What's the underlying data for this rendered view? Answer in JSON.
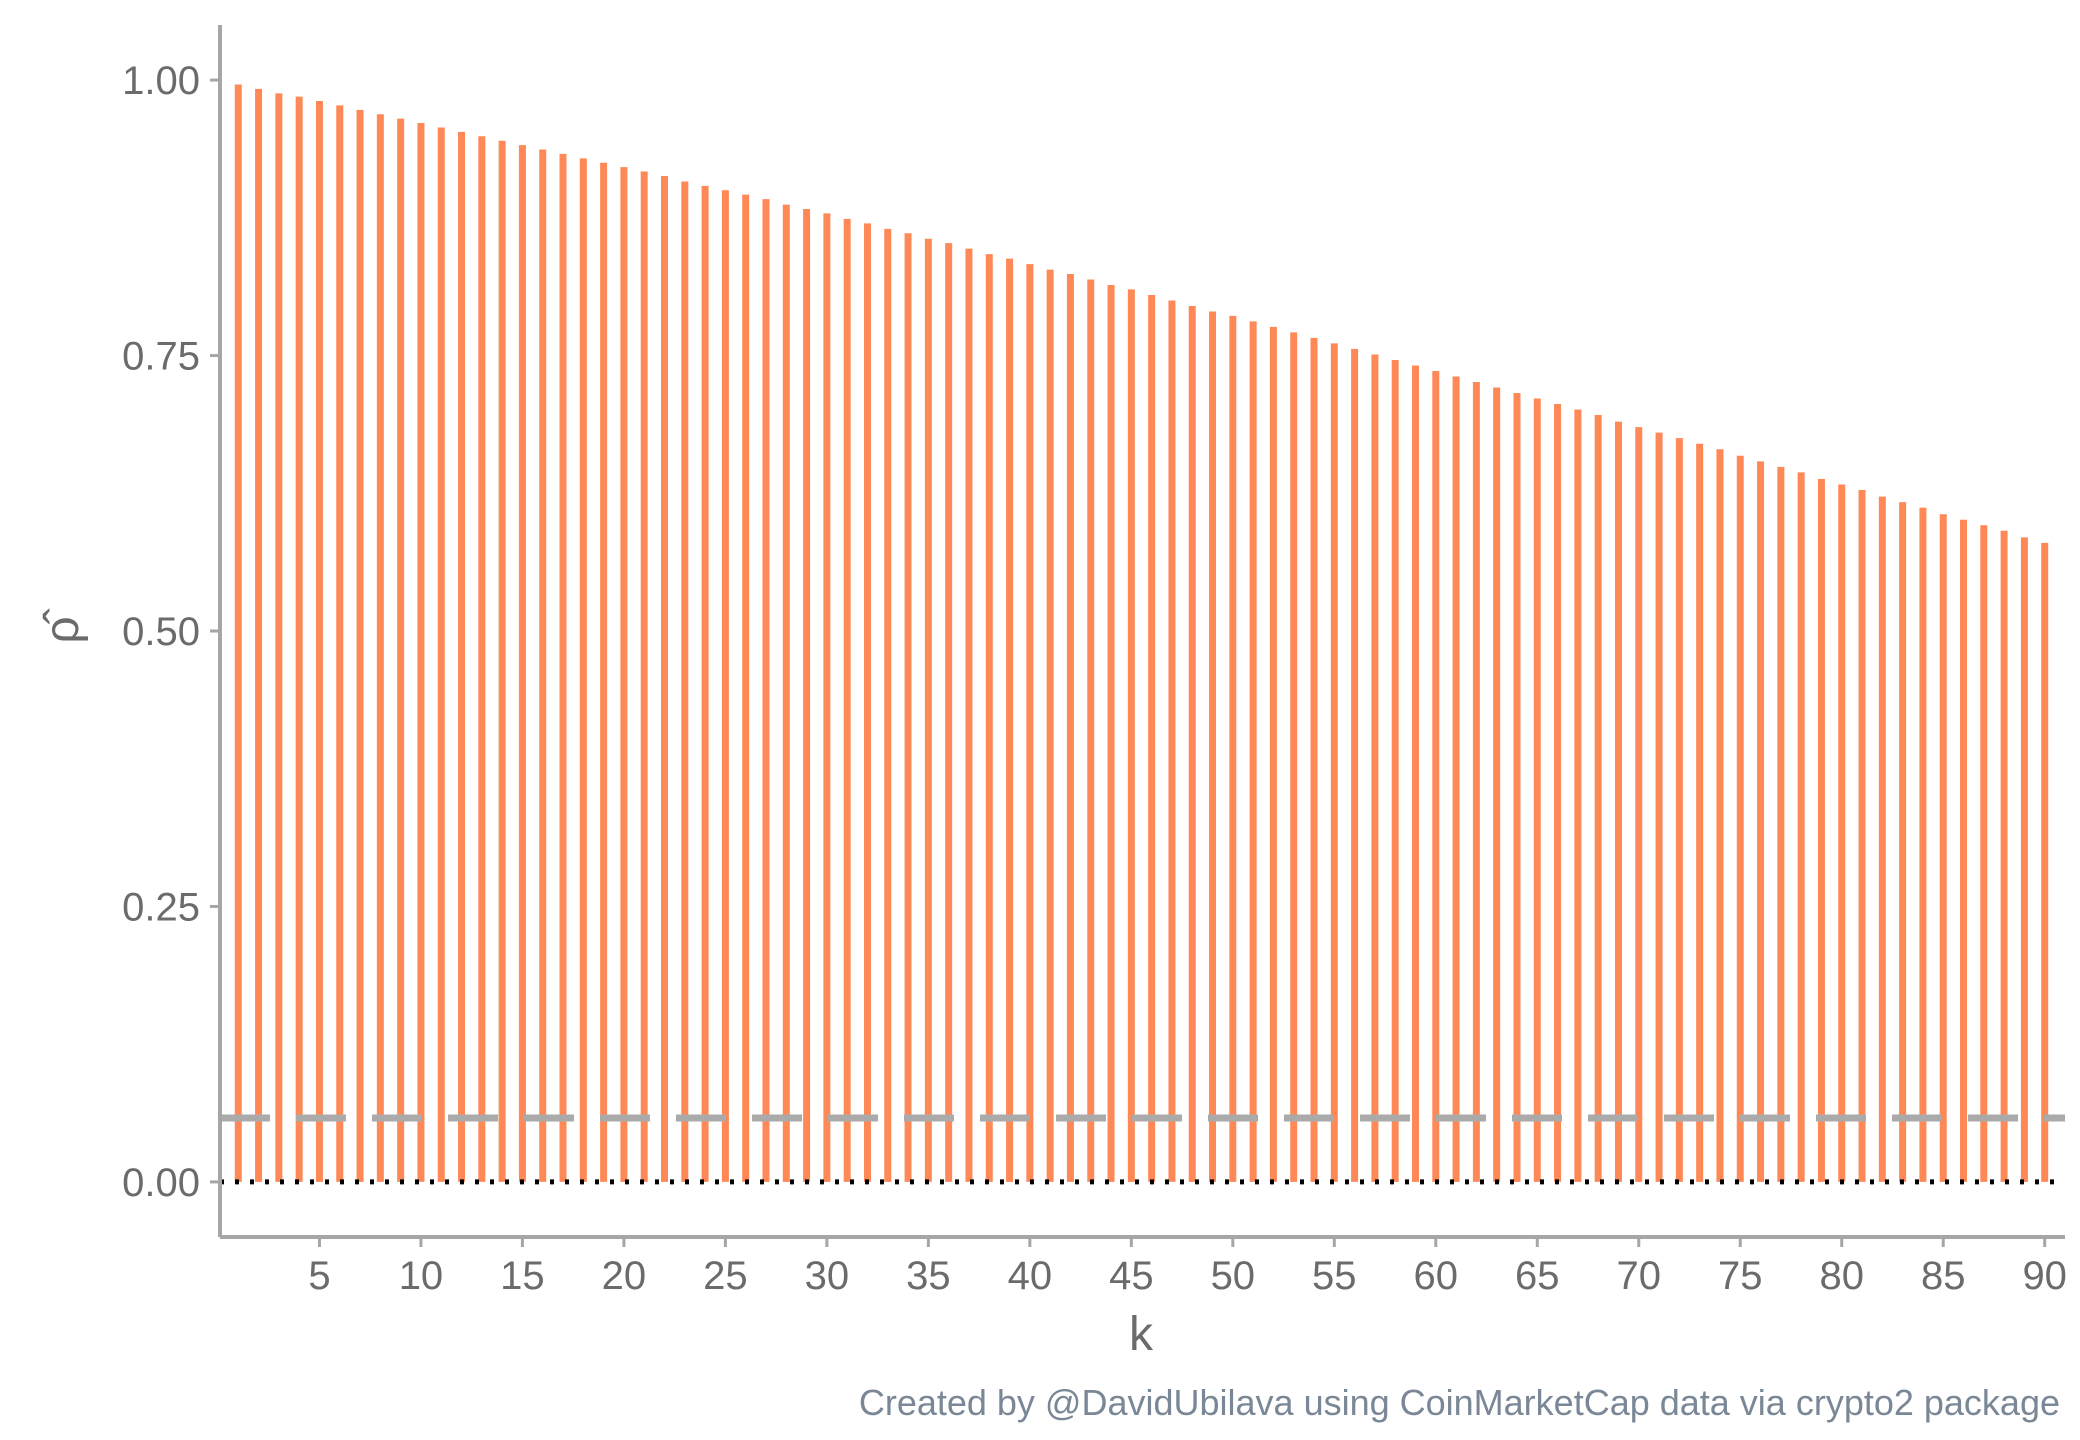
{
  "chart_data": {
    "type": "bar",
    "xlabel": "k",
    "ylabel": "ρ̂",
    "caption": "Created by @DavidUbilava using CoinMarketCap data via crypto2 package",
    "x": [
      1,
      2,
      3,
      4,
      5,
      6,
      7,
      8,
      9,
      10,
      11,
      12,
      13,
      14,
      15,
      16,
      17,
      18,
      19,
      20,
      21,
      22,
      23,
      24,
      25,
      26,
      27,
      28,
      29,
      30,
      31,
      32,
      33,
      34,
      35,
      36,
      37,
      38,
      39,
      40,
      41,
      42,
      43,
      44,
      45,
      46,
      47,
      48,
      49,
      50,
      51,
      52,
      53,
      54,
      55,
      56,
      57,
      58,
      59,
      60,
      61,
      62,
      63,
      64,
      65,
      66,
      67,
      68,
      69,
      70,
      71,
      72,
      73,
      74,
      75,
      76,
      77,
      78,
      79,
      80,
      81,
      82,
      83,
      84,
      85,
      86,
      87,
      88,
      89,
      90
    ],
    "values": [
      0.996,
      0.992,
      0.988,
      0.985,
      0.981,
      0.977,
      0.973,
      0.969,
      0.965,
      0.961,
      0.957,
      0.953,
      0.949,
      0.945,
      0.941,
      0.937,
      0.933,
      0.929,
      0.925,
      0.921,
      0.917,
      0.913,
      0.908,
      0.904,
      0.9,
      0.896,
      0.892,
      0.887,
      0.883,
      0.879,
      0.874,
      0.87,
      0.865,
      0.861,
      0.856,
      0.852,
      0.847,
      0.842,
      0.838,
      0.833,
      0.828,
      0.824,
      0.819,
      0.814,
      0.81,
      0.805,
      0.8,
      0.795,
      0.79,
      0.786,
      0.781,
      0.776,
      0.771,
      0.766,
      0.761,
      0.756,
      0.751,
      0.746,
      0.741,
      0.736,
      0.731,
      0.726,
      0.721,
      0.716,
      0.711,
      0.706,
      0.701,
      0.696,
      0.69,
      0.685,
      0.68,
      0.675,
      0.67,
      0.665,
      0.659,
      0.654,
      0.649,
      0.644,
      0.638,
      0.633,
      0.628,
      0.622,
      0.617,
      0.612,
      0.606,
      0.601,
      0.596,
      0.591,
      0.585,
      0.58
    ],
    "bar_color": "#FF8857",
    "confidence_line": {
      "value": 0.058,
      "color": "#AAAAAA",
      "style": "dashed"
    },
    "zero_line": {
      "value": 0.0,
      "color": "#000000",
      "style": "dotted"
    },
    "xlim": [
      0.1,
      91.0
    ],
    "ylim": [
      -0.05,
      1.05
    ],
    "x_ticks": [
      5,
      10,
      15,
      20,
      25,
      30,
      35,
      40,
      45,
      50,
      55,
      60,
      65,
      70,
      75,
      80,
      85,
      90
    ],
    "x_tick_labels": [
      "5",
      "10",
      "15",
      "20",
      "25",
      "30",
      "35",
      "40",
      "45",
      "50",
      "55",
      "60",
      "65",
      "70",
      "75",
      "80",
      "85",
      "90"
    ],
    "y_ticks": [
      0.0,
      0.25,
      0.5,
      0.75,
      1.0
    ],
    "y_tick_labels": [
      "0.00",
      "0.25",
      "0.50",
      "0.75",
      "1.00"
    ],
    "grid": false,
    "axis_color": "#A6A6A6"
  }
}
